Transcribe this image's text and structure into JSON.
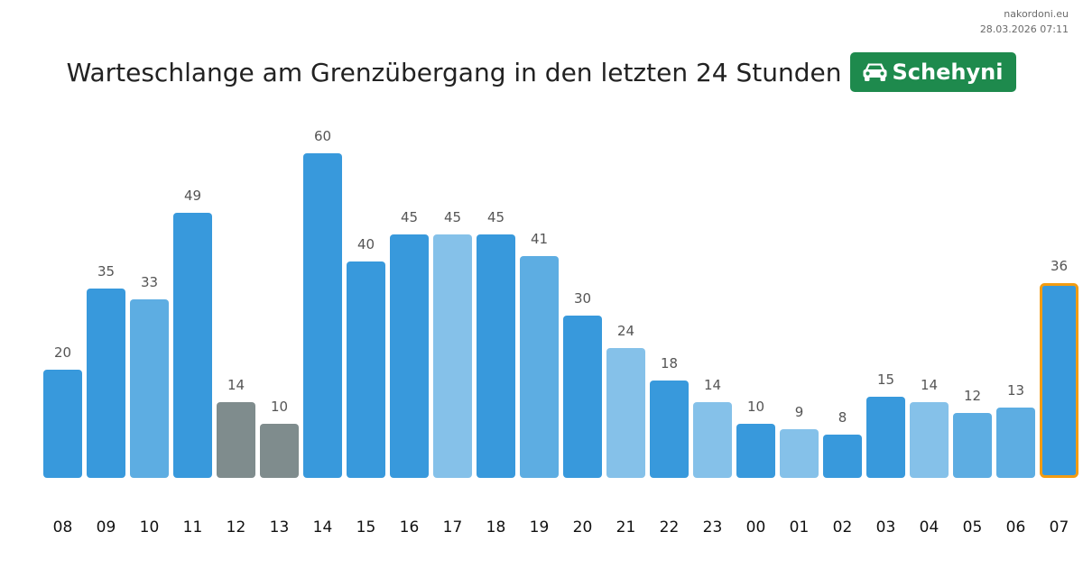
{
  "meta": {
    "site": "nakordoni.eu",
    "timestamp": "28.03.2026 07:11"
  },
  "header": {
    "title": "Warteschlange am Grenzübergang in den letzten 24 Stunden",
    "badge_label": "Schehyni",
    "badge_icon": "car-icon",
    "badge_color": "#1e8a4d"
  },
  "colors": {
    "dark_blue": "#3899dc",
    "mid_blue": "#5dade2",
    "light_blue": "#85c1e9",
    "gray": "#7f8c8d",
    "highlight_border": "#f39c12",
    "value_label": "#555555",
    "tick_label": "#111111"
  },
  "chart_data": {
    "type": "bar",
    "title": "Warteschlange am Grenzübergang in den letzten 24 Stunden",
    "xlabel": "",
    "ylabel": "",
    "ylim": [
      0,
      60
    ],
    "grid": false,
    "categories": [
      "08",
      "09",
      "10",
      "11",
      "12",
      "13",
      "14",
      "15",
      "16",
      "17",
      "18",
      "19",
      "20",
      "21",
      "22",
      "23",
      "00",
      "01",
      "02",
      "03",
      "04",
      "05",
      "06",
      "07"
    ],
    "values": [
      20,
      35,
      33,
      49,
      14,
      10,
      60,
      40,
      45,
      45,
      45,
      41,
      30,
      24,
      18,
      14,
      10,
      9,
      8,
      15,
      14,
      12,
      13,
      36
    ],
    "bar_colors": [
      "dark_blue",
      "dark_blue",
      "mid_blue",
      "dark_blue",
      "gray",
      "gray",
      "dark_blue",
      "dark_blue",
      "dark_blue",
      "light_blue",
      "dark_blue",
      "mid_blue",
      "dark_blue",
      "light_blue",
      "dark_blue",
      "light_blue",
      "dark_blue",
      "light_blue",
      "dark_blue",
      "dark_blue",
      "light_blue",
      "mid_blue",
      "mid_blue",
      "dark_blue"
    ],
    "highlighted_category": "07"
  }
}
